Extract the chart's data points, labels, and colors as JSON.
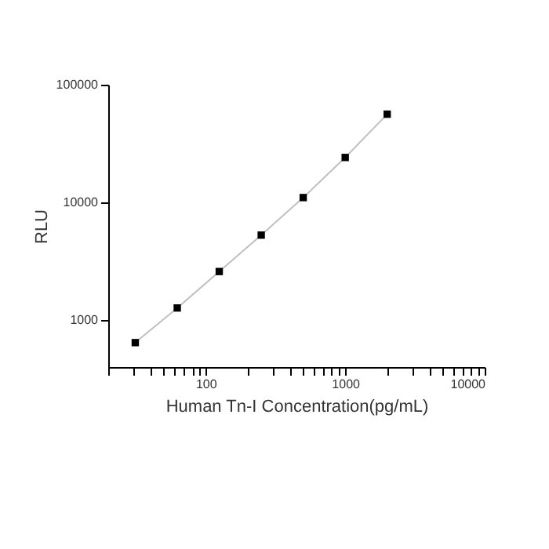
{
  "chart_data": {
    "type": "scatter",
    "xlabel": "Human Tn-I Concentration(pg/mL)",
    "ylabel": "RLU",
    "log": "xy",
    "grid": false,
    "xlim": [
      20,
      10000
    ],
    "ylim": [
      400,
      100000
    ],
    "xticks": [
      {
        "value": 20,
        "label": null
      },
      {
        "value": 30,
        "label": null
      },
      {
        "value": 40,
        "label": null
      },
      {
        "value": 50,
        "label": null
      },
      {
        "value": 60,
        "label": null
      },
      {
        "value": 70,
        "label": null
      },
      {
        "value": 80,
        "label": null
      },
      {
        "value": 90,
        "label": null
      },
      100,
      {
        "value": 200,
        "label": null
      },
      {
        "value": 300,
        "label": null
      },
      {
        "value": 400,
        "label": null
      },
      {
        "value": 500,
        "label": null
      },
      {
        "value": 600,
        "label": null
      },
      {
        "value": 700,
        "label": null
      },
      {
        "value": 800,
        "label": null
      },
      {
        "value": 900,
        "label": null
      },
      1000,
      {
        "value": 2000,
        "label": null
      },
      {
        "value": 3000,
        "label": null
      },
      {
        "value": 4000,
        "label": null
      },
      {
        "value": 5000,
        "label": null
      },
      {
        "value": 6000,
        "label": null
      },
      {
        "value": 7000,
        "label": null
      },
      {
        "value": 8000,
        "label": null
      },
      {
        "value": 9000,
        "label": null
      },
      10000
    ],
    "yticks": [
      1000,
      10000,
      100000
    ],
    "series": [
      {
        "type": "line",
        "marker": "none",
        "color": "#c0c0c0",
        "x": [
          31.25,
          62.5,
          125,
          250,
          500,
          1000,
          2000
        ],
        "values": [
          645,
          1270,
          2590,
          5280,
          11000,
          24100,
          56200
        ]
      },
      {
        "marker": "square",
        "color": "#000000",
        "x": [
          31.25,
          62.5,
          125,
          250,
          500,
          1000,
          2000
        ],
        "values": [
          645,
          1270,
          2590,
          5280,
          11000,
          24100,
          56200
        ]
      }
    ]
  }
}
